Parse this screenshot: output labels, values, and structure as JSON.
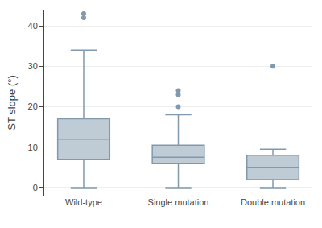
{
  "chart_data": {
    "type": "box",
    "categories": [
      "Wild-type",
      "Single mutation",
      "Double mutation"
    ],
    "boxes": [
      {
        "q1": 7,
        "median": 12,
        "q3": 17,
        "whislo": 0,
        "whishi": 34,
        "fliers": [
          42,
          43
        ]
      },
      {
        "q1": 6,
        "median": 7.5,
        "q3": 10.5,
        "whislo": 0,
        "whishi": 18,
        "fliers": [
          20,
          23,
          24
        ]
      },
      {
        "q1": 2,
        "median": 5,
        "q3": 8,
        "whislo": 0,
        "whishi": 9.5,
        "fliers": [
          30
        ]
      }
    ],
    "ylabel": "ST slope (°)",
    "ylim": [
      -2,
      44
    ],
    "yticks": [
      0,
      10,
      20,
      30,
      40
    ],
    "color": "#8099ae",
    "grid": true
  }
}
